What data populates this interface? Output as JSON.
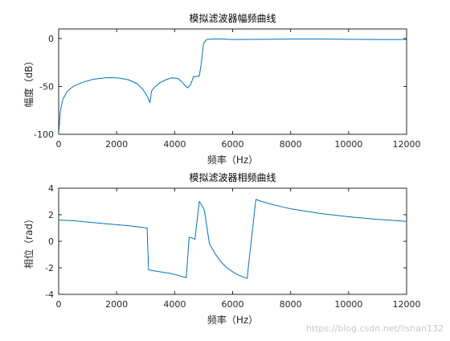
{
  "chart_data": [
    {
      "type": "line",
      "title": "模拟滤波器幅频曲线",
      "xlabel": "频率（Hz）",
      "ylabel": "幅度（dB）",
      "xlim": [
        0,
        12000
      ],
      "ylim": [
        -100,
        10
      ],
      "xticks": [
        0,
        2000,
        4000,
        6000,
        8000,
        10000,
        12000
      ],
      "yticks": [
        -100,
        -50,
        0
      ],
      "grid": false,
      "line_color": "#0072BD",
      "series": [
        {
          "x": [
            0,
            60,
            150,
            300,
            500,
            800,
            1200,
            1600,
            1800,
            2100,
            2400,
            2700,
            2900,
            3050,
            3150,
            3200,
            3300,
            3500,
            3700,
            3900,
            4100,
            4250,
            4350,
            4450,
            4550,
            4650,
            4700,
            4750,
            4850,
            4900,
            5000,
            5100,
            5300,
            5600,
            6000,
            7000,
            8000,
            9000,
            10000,
            11000,
            12000
          ],
          "y": [
            -100,
            -75,
            -63,
            -55,
            -50,
            -46,
            -42.5,
            -41,
            -40.8,
            -41.3,
            -43,
            -47,
            -53,
            -60,
            -67,
            -55,
            -51,
            -46,
            -43,
            -41,
            -41.5,
            -45,
            -49,
            -51.5,
            -48,
            -40,
            -40,
            -39.5,
            -39,
            -30,
            -5,
            -1,
            -0.5,
            -0.5,
            -1,
            -0.8,
            -0.5,
            -0.5,
            -0.8,
            -1,
            -1
          ]
        }
      ]
    },
    {
      "type": "line",
      "title": "模拟滤波器相频曲线",
      "xlabel": "频率（Hz）",
      "ylabel": "相位（rad）",
      "xlim": [
        0,
        12000
      ],
      "ylim": [
        -4,
        4
      ],
      "xticks": [
        0,
        2000,
        4000,
        6000,
        8000,
        10000,
        12000
      ],
      "yticks": [
        -4,
        -2,
        0,
        2,
        4
      ],
      "grid": false,
      "line_color": "#0072BD",
      "series": [
        {
          "x": [
            0,
            500,
            1000,
            1500,
            2000,
            2500,
            3050,
            3100,
            3200,
            3500,
            3800,
            4100,
            4400,
            4500,
            4600,
            4700,
            4850,
            5000,
            5050,
            5200,
            5400,
            5600,
            5800,
            6000,
            6200,
            6500,
            6800,
            7000,
            7500,
            8000,
            9000,
            10000,
            11000,
            12000
          ],
          "y": [
            1.6,
            1.55,
            1.45,
            1.35,
            1.25,
            1.15,
            1.0,
            -2.15,
            -2.2,
            -2.3,
            -2.4,
            -2.55,
            -2.75,
            0.3,
            0.25,
            0.15,
            3.0,
            2.5,
            2.0,
            -0.2,
            -0.95,
            -1.55,
            -2.0,
            -2.3,
            -2.55,
            -2.8,
            3.15,
            3.0,
            2.7,
            2.45,
            2.1,
            1.85,
            1.65,
            1.5
          ]
        }
      ]
    }
  ],
  "watermark": "https://blog.csdn.net/lishan132"
}
